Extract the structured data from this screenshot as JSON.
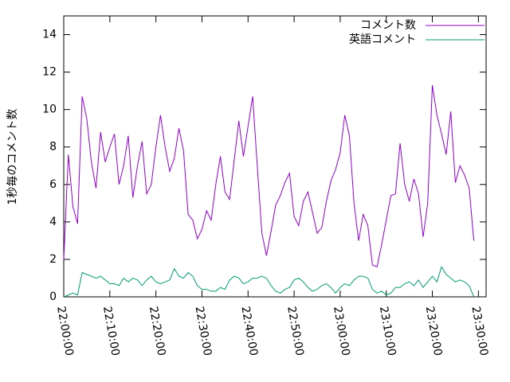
{
  "chart_data": {
    "type": "line",
    "y_label": "1秒毎のコメント数",
    "x": [
      "22:00:00",
      "22:01:00",
      "22:02:00",
      "22:03:00",
      "22:04:00",
      "22:05:00",
      "22:06:00",
      "22:07:00",
      "22:08:00",
      "22:09:00",
      "22:10:00",
      "22:11:00",
      "22:12:00",
      "22:13:00",
      "22:14:00",
      "22:15:00",
      "22:16:00",
      "22:17:00",
      "22:18:00",
      "22:19:00",
      "22:20:00",
      "22:21:00",
      "22:22:00",
      "22:23:00",
      "22:24:00",
      "22:25:00",
      "22:26:00",
      "22:27:00",
      "22:28:00",
      "22:29:00",
      "22:30:00",
      "22:31:00",
      "22:32:00",
      "22:33:00",
      "22:34:00",
      "22:35:00",
      "22:36:00",
      "22:37:00",
      "22:38:00",
      "22:39:00",
      "22:40:00",
      "22:41:00",
      "22:42:00",
      "22:43:00",
      "22:44:00",
      "22:45:00",
      "22:46:00",
      "22:47:00",
      "22:48:00",
      "22:49:00",
      "22:50:00",
      "22:51:00",
      "22:52:00",
      "22:53:00",
      "22:54:00",
      "22:55:00",
      "22:56:00",
      "22:57:00",
      "22:58:00",
      "22:59:00",
      "23:00:00",
      "23:01:00",
      "23:02:00",
      "23:03:00",
      "23:04:00",
      "23:05:00",
      "23:06:00",
      "23:07:00",
      "23:08:00",
      "23:09:00",
      "23:10:00",
      "23:11:00",
      "23:12:00",
      "23:13:00",
      "23:14:00",
      "23:15:00",
      "23:16:00",
      "23:17:00",
      "23:18:00",
      "23:19:00",
      "23:20:00",
      "23:21:00",
      "23:22:00",
      "23:23:00",
      "23:24:00",
      "23:25:00",
      "23:26:00",
      "23:27:00",
      "23:28:00",
      "23:29:00"
    ],
    "series": [
      {
        "name": "コメント数",
        "color": "#9400d3",
        "values": [
          2.0,
          7.6,
          4.8,
          3.9,
          10.7,
          9.5,
          7.2,
          5.8,
          8.8,
          7.2,
          8.0,
          8.7,
          6.0,
          7.0,
          8.6,
          5.3,
          7.0,
          8.3,
          5.5,
          6.0,
          8.0,
          9.7,
          8.0,
          6.7,
          7.4,
          9.0,
          7.8,
          4.4,
          4.1,
          3.1,
          3.6,
          4.6,
          4.1,
          6.0,
          7.5,
          5.6,
          5.2,
          7.3,
          9.4,
          7.5,
          9.1,
          10.7,
          7.0,
          3.4,
          2.2,
          3.5,
          4.9,
          5.4,
          6.1,
          6.6,
          4.3,
          3.8,
          5.1,
          5.6,
          4.5,
          3.4,
          3.7,
          5.1,
          6.2,
          6.8,
          7.7,
          9.7,
          8.6,
          5.0,
          3.0,
          4.4,
          3.8,
          1.7,
          1.6,
          2.8,
          4.1,
          5.4,
          5.5,
          8.2,
          6.0,
          5.1,
          6.3,
          5.5,
          3.2,
          5.0,
          11.3,
          9.7,
          8.7,
          7.6,
          9.9,
          6.1,
          7.0,
          6.5,
          5.8,
          3.0
        ]
      },
      {
        "name": "英語コメント",
        "color": "#009e73",
        "values": [
          0,
          0.1,
          0.2,
          0.1,
          1.3,
          1.2,
          1.1,
          1.0,
          1.1,
          0.9,
          0.7,
          0.7,
          0.6,
          1.0,
          0.8,
          1.0,
          0.9,
          0.6,
          0.9,
          1.1,
          0.8,
          0.7,
          0.8,
          0.9,
          1.5,
          1.1,
          1.0,
          1.3,
          1.1,
          0.6,
          0.4,
          0.4,
          0.3,
          0.3,
          0.5,
          0.4,
          0.9,
          1.1,
          1.0,
          0.7,
          0.8,
          1.0,
          1.0,
          1.1,
          1.0,
          0.6,
          0.3,
          0.2,
          0.4,
          0.5,
          0.9,
          1.0,
          0.8,
          0.5,
          0.3,
          0.4,
          0.6,
          0.7,
          0.5,
          0.2,
          0.5,
          0.7,
          0.6,
          0.9,
          1.1,
          1.1,
          1.0,
          0.4,
          0.2,
          0.3,
          0.1,
          0.2,
          0.5,
          0.5,
          0.7,
          0.8,
          0.6,
          0.9,
          0.5,
          0.8,
          1.1,
          0.8,
          1.6,
          1.2,
          1.0,
          0.8,
          0.9,
          0.8,
          0.6,
          0.0
        ]
      }
    ],
    "xlim": [
      "22:00:00",
      "23:31:40"
    ],
    "xticks": [
      "22:00:00",
      "22:10:00",
      "22:20:00",
      "22:30:00",
      "22:40:00",
      "22:50:00",
      "23:00:00",
      "23:10:00",
      "23:20:00",
      "23:30:00"
    ],
    "ylim": [
      0,
      15
    ],
    "yticks": [
      0,
      2,
      4,
      6,
      8,
      10,
      12,
      14
    ],
    "legend": "top-right"
  }
}
